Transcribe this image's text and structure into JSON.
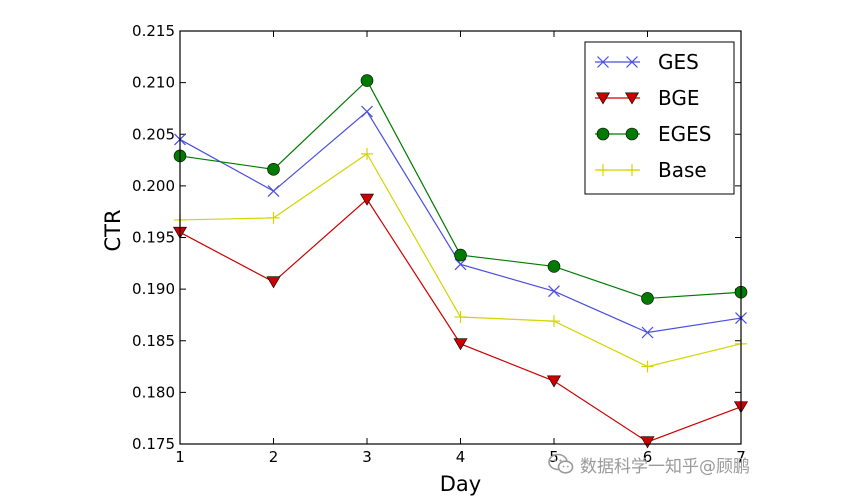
{
  "chart_data": {
    "type": "line",
    "xlabel": "Day",
    "ylabel": "CTR",
    "xlim": [
      1,
      7
    ],
    "ylim": [
      0.175,
      0.215
    ],
    "x_ticks": [
      "1",
      "2",
      "3",
      "4",
      "5",
      "6",
      "7"
    ],
    "y_ticks": [
      "0.175",
      "0.180",
      "0.185",
      "0.190",
      "0.195",
      "0.200",
      "0.205",
      "0.210",
      "0.215"
    ],
    "legend_position": "top-right",
    "grid": false,
    "series": [
      {
        "name": "GES",
        "color": "#4a4fe0",
        "marker": "x",
        "x": [
          1,
          2,
          3,
          4,
          5,
          6,
          7
        ],
        "values": [
          0.2045,
          0.1995,
          0.2072,
          0.1924,
          0.1898,
          0.1858,
          0.1872
        ]
      },
      {
        "name": "BGE",
        "color": "#cc0000",
        "marker": "triangle-down",
        "x": [
          1,
          2,
          3,
          4,
          5,
          6,
          7
        ],
        "values": [
          0.1955,
          0.1907,
          0.1987,
          0.1847,
          0.1811,
          0.1752,
          0.1786
        ]
      },
      {
        "name": "EGES",
        "color": "#007a00",
        "marker": "circle",
        "x": [
          1,
          2,
          3,
          4,
          5,
          6,
          7
        ],
        "values": [
          0.2029,
          0.2016,
          0.2102,
          0.1933,
          0.1922,
          0.1891,
          0.1897
        ]
      },
      {
        "name": "Base",
        "color": "#d4d400",
        "marker": "plus",
        "x": [
          1,
          2,
          3,
          4,
          5,
          6,
          7
        ],
        "values": [
          0.1967,
          0.1969,
          0.2031,
          0.1873,
          0.1869,
          0.1825,
          0.1847
        ]
      }
    ]
  },
  "watermark": {
    "text": "数据科学一知乎@顾鹏",
    "icon": "wechat-icon"
  }
}
